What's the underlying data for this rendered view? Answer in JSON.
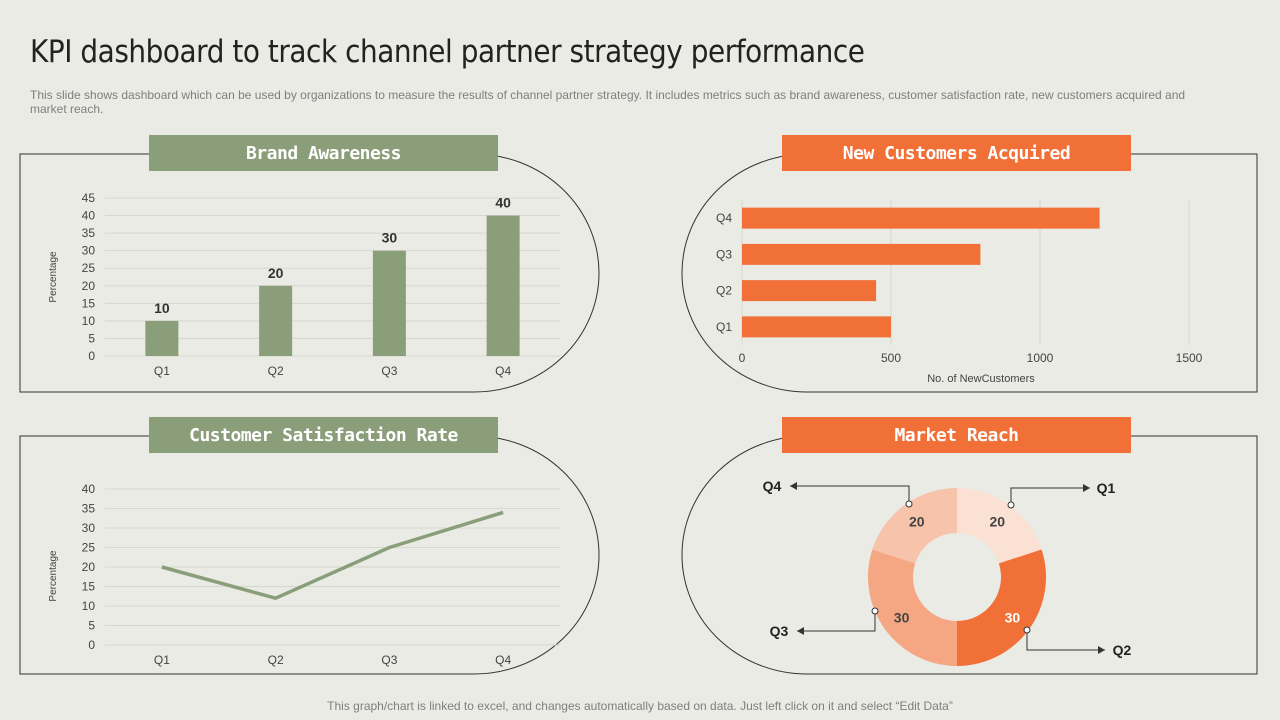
{
  "page": {
    "title": "KPI dashboard to track channel partner strategy performance",
    "subtitle": "This slide shows dashboard which can be used by organizations to measure the results of channel partner strategy. It includes metrics such as brand awareness, customer satisfaction rate, new customers acquired and market reach.",
    "footer": "This graph/chart is linked to excel, and changes automatically based on data. Just left click on it and select “Edit Data”"
  },
  "colors": {
    "green": "#8b9e7a",
    "orange": "#f07038",
    "bg": "#e9ebe4"
  },
  "chart_data": [
    {
      "id": "brand_awareness",
      "type": "bar",
      "title": "Brand Awareness",
      "categories": [
        "Q1",
        "Q2",
        "Q3",
        "Q4"
      ],
      "values": [
        10,
        20,
        30,
        40
      ],
      "ylabel": "Percentage",
      "ylim": [
        0,
        45
      ],
      "yticks": [
        0,
        5,
        10,
        15,
        20,
        25,
        30,
        35,
        40,
        45
      ],
      "data_labels": true,
      "grid": true
    },
    {
      "id": "new_customers",
      "type": "bar",
      "orientation": "horizontal",
      "title": "New Customers Acquired",
      "categories": [
        "Q1",
        "Q2",
        "Q3",
        "Q4"
      ],
      "values": [
        500,
        450,
        800,
        1200
      ],
      "xlabel": "No. of NewCustomers",
      "xlim": [
        0,
        1500
      ],
      "xticks": [
        0,
        500,
        1000,
        1500
      ],
      "grid": true
    },
    {
      "id": "satisfaction",
      "type": "line",
      "title": "Customer Satisfaction Rate",
      "categories": [
        "Q1",
        "Q2",
        "Q3",
        "Q4"
      ],
      "values": [
        20,
        12,
        25,
        34
      ],
      "ylabel": "Percentage",
      "ylim": [
        0,
        40
      ],
      "yticks": [
        0,
        5,
        10,
        15,
        20,
        25,
        30,
        35,
        40
      ],
      "grid": true
    },
    {
      "id": "market_reach",
      "type": "pie",
      "variant": "donut",
      "title": "Market Reach",
      "categories": [
        "Q1",
        "Q2",
        "Q3",
        "Q4"
      ],
      "values": [
        20,
        30,
        30,
        20
      ],
      "colors": [
        "#fbe0d4",
        "#f07038",
        "#f5a783",
        "#f7c3aa"
      ]
    }
  ]
}
